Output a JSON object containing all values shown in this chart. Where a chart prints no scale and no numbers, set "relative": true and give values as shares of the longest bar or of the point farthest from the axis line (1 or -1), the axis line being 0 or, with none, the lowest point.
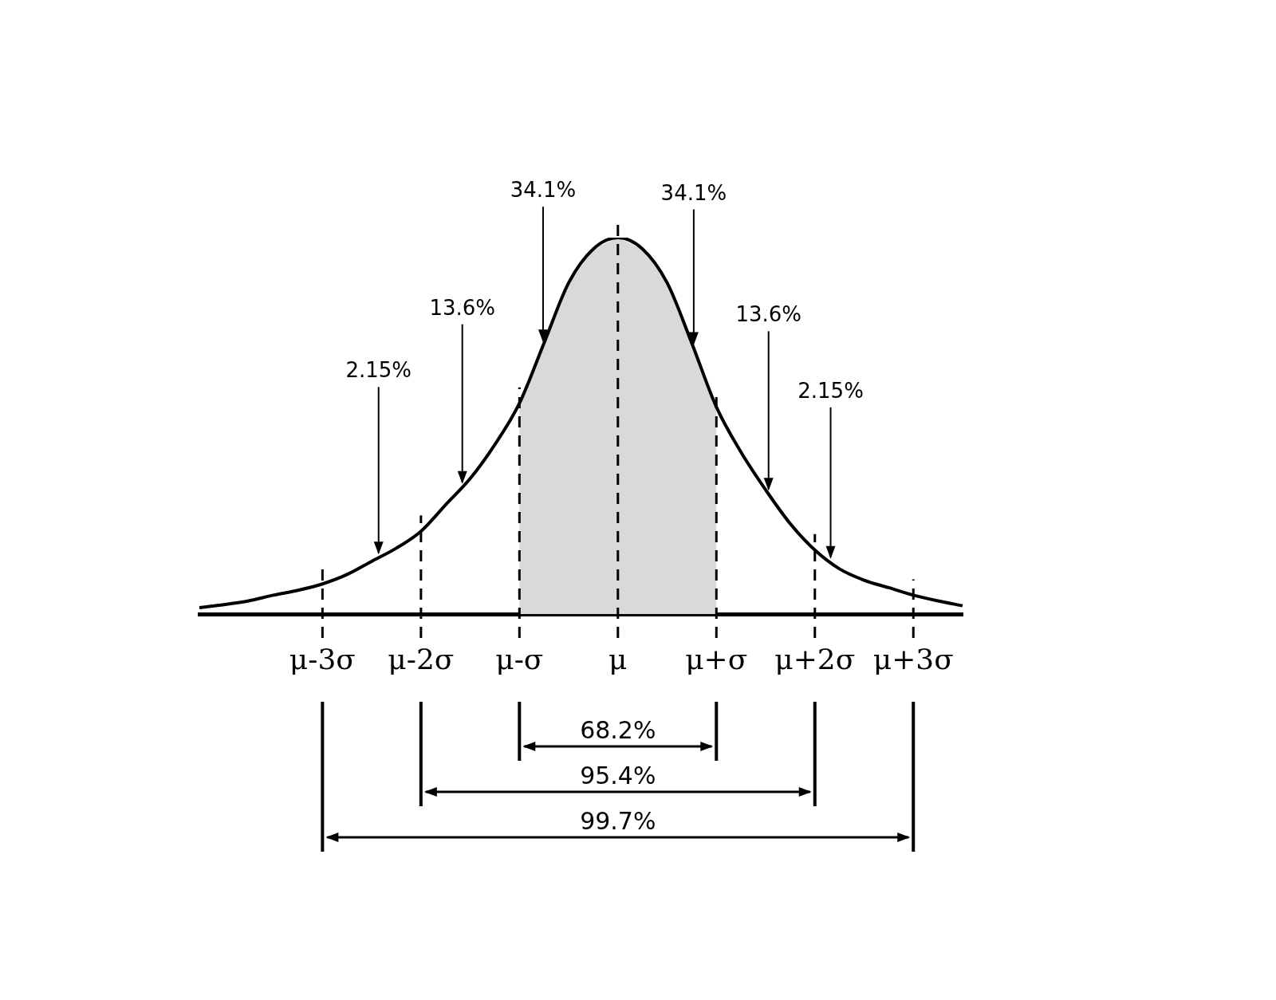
{
  "chart_data": {
    "type": "line",
    "relative": true,
    "grid": false,
    "legend": false,
    "categories": [
      null,
      null,
      null,
      null,
      null,
      "μ-3σ",
      null,
      null,
      null,
      "μ-2σ",
      null,
      null,
      null,
      "μ-σ",
      null,
      null,
      null,
      "μ",
      null,
      null,
      null,
      "μ+σ",
      null,
      null,
      null,
      "μ+2σ",
      null,
      null,
      null,
      "μ+3σ",
      null,
      null
    ],
    "series": [
      {
        "color": "#000000",
        "values": [
          0.017,
          0.025,
          0.035,
          0.05,
          0.063,
          0.08,
          0.105,
          0.14,
          0.175,
          0.22,
          0.29,
          0.36,
          0.45,
          0.56,
          0.72,
          0.88,
          0.97,
          1,
          0.97,
          0.88,
          0.72,
          0.55,
          0.43,
          0.33,
          0.24,
          0.17,
          0.12,
          0.09,
          0.07,
          0.05,
          0.035,
          0.022
        ]
      }
    ],
    "ref_lines": [
      {
        "axis": "x",
        "value": "μ-3σ",
        "line_style": "dashed"
      },
      {
        "axis": "x",
        "value": "μ-2σ",
        "line_style": "dashed"
      },
      {
        "axis": "x",
        "value": "μ-σ",
        "line_style": "dashed"
      },
      {
        "axis": "x",
        "value": "μ",
        "line_style": "dashed"
      },
      {
        "axis": "x",
        "value": "μ+σ",
        "line_style": "dashed"
      },
      {
        "axis": "x",
        "value": "μ+2σ",
        "line_style": "dashed"
      },
      {
        "axis": "x",
        "value": "μ+3σ",
        "line_style": "dashed"
      }
    ],
    "bands": [
      {
        "axis": "x",
        "from": "μ-σ",
        "to": "μ+σ",
        "color": "#d9d9d9"
      }
    ],
    "annotations": [
      "2.15%",
      "13.6%",
      "34.1%",
      "34.1%",
      "13.6%",
      "2.15%",
      "68.2%",
      "95.4%",
      "99.7%"
    ]
  }
}
